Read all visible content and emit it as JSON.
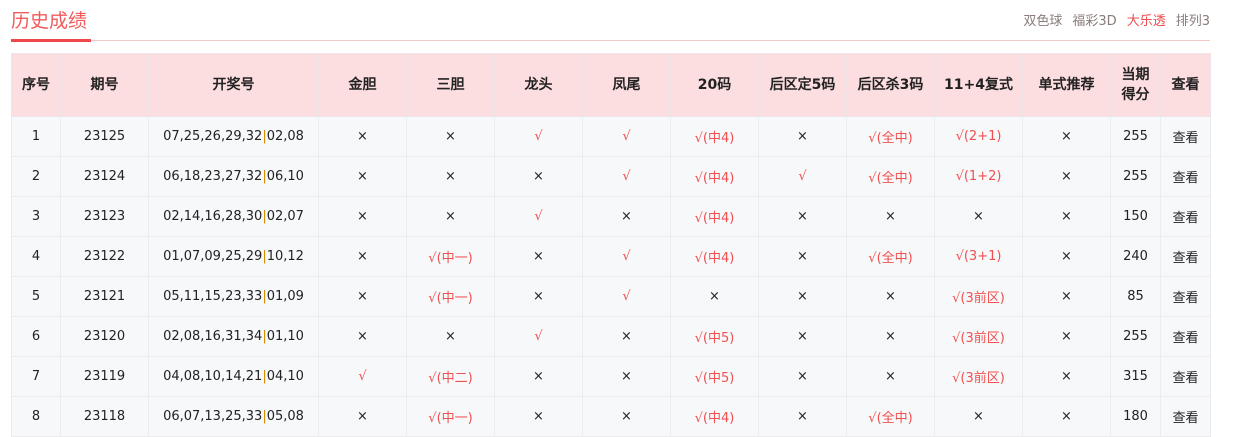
{
  "header": {
    "title": "历史成绩",
    "lotteries": [
      {
        "label": "双色球",
        "active": false
      },
      {
        "label": "福彩3D",
        "active": false
      },
      {
        "label": "大乐透",
        "active": true
      },
      {
        "label": "排列3",
        "active": false
      }
    ]
  },
  "colors": {
    "accent": "#f05050",
    "header_bg": "#fcdde0",
    "separator": "#d88a00"
  },
  "table": {
    "columns": [
      "序号",
      "期号",
      "开奖号",
      "金胆",
      "三胆",
      "龙头",
      "凤尾",
      "20码",
      "后区定5码",
      "后区杀3码",
      "11+4复式",
      "单式推荐",
      "当期得分",
      "查看"
    ],
    "rows": [
      [
        "1",
        "23125",
        "07,25,26,29,32|02,08",
        "×",
        "×",
        "√",
        "√",
        "√(中4)",
        "×",
        "√(全中)",
        "√(2+1)",
        "×",
        "255",
        "查看"
      ],
      [
        "2",
        "23124",
        "06,18,23,27,32|06,10",
        "×",
        "×",
        "×",
        "√",
        "√(中4)",
        "√",
        "√(全中)",
        "√(1+2)",
        "×",
        "255",
        "查看"
      ],
      [
        "3",
        "23123",
        "02,14,16,28,30|02,07",
        "×",
        "×",
        "√",
        "×",
        "√(中4)",
        "×",
        "×",
        "×",
        "×",
        "150",
        "查看"
      ],
      [
        "4",
        "23122",
        "01,07,09,25,29|10,12",
        "×",
        "√(中一)",
        "×",
        "√",
        "√(中4)",
        "×",
        "√(全中)",
        "√(3+1)",
        "×",
        "240",
        "查看"
      ],
      [
        "5",
        "23121",
        "05,11,15,23,33|01,09",
        "×",
        "√(中一)",
        "×",
        "√",
        "×",
        "×",
        "×",
        "√(3前区)",
        "×",
        "85",
        "查看"
      ],
      [
        "6",
        "23120",
        "02,08,16,31,34|01,10",
        "×",
        "×",
        "√",
        "×",
        "√(中5)",
        "×",
        "×",
        "√(3前区)",
        "×",
        "255",
        "查看"
      ],
      [
        "7",
        "23119",
        "04,08,10,14,21|04,10",
        "√",
        "√(中二)",
        "×",
        "×",
        "√(中5)",
        "×",
        "×",
        "√(3前区)",
        "×",
        "315",
        "查看"
      ],
      [
        "8",
        "23118",
        "06,07,13,25,33|05,08",
        "×",
        "√(中一)",
        "×",
        "×",
        "√(中4)",
        "×",
        "√(全中)",
        "×",
        "×",
        "180",
        "查看"
      ]
    ]
  }
}
